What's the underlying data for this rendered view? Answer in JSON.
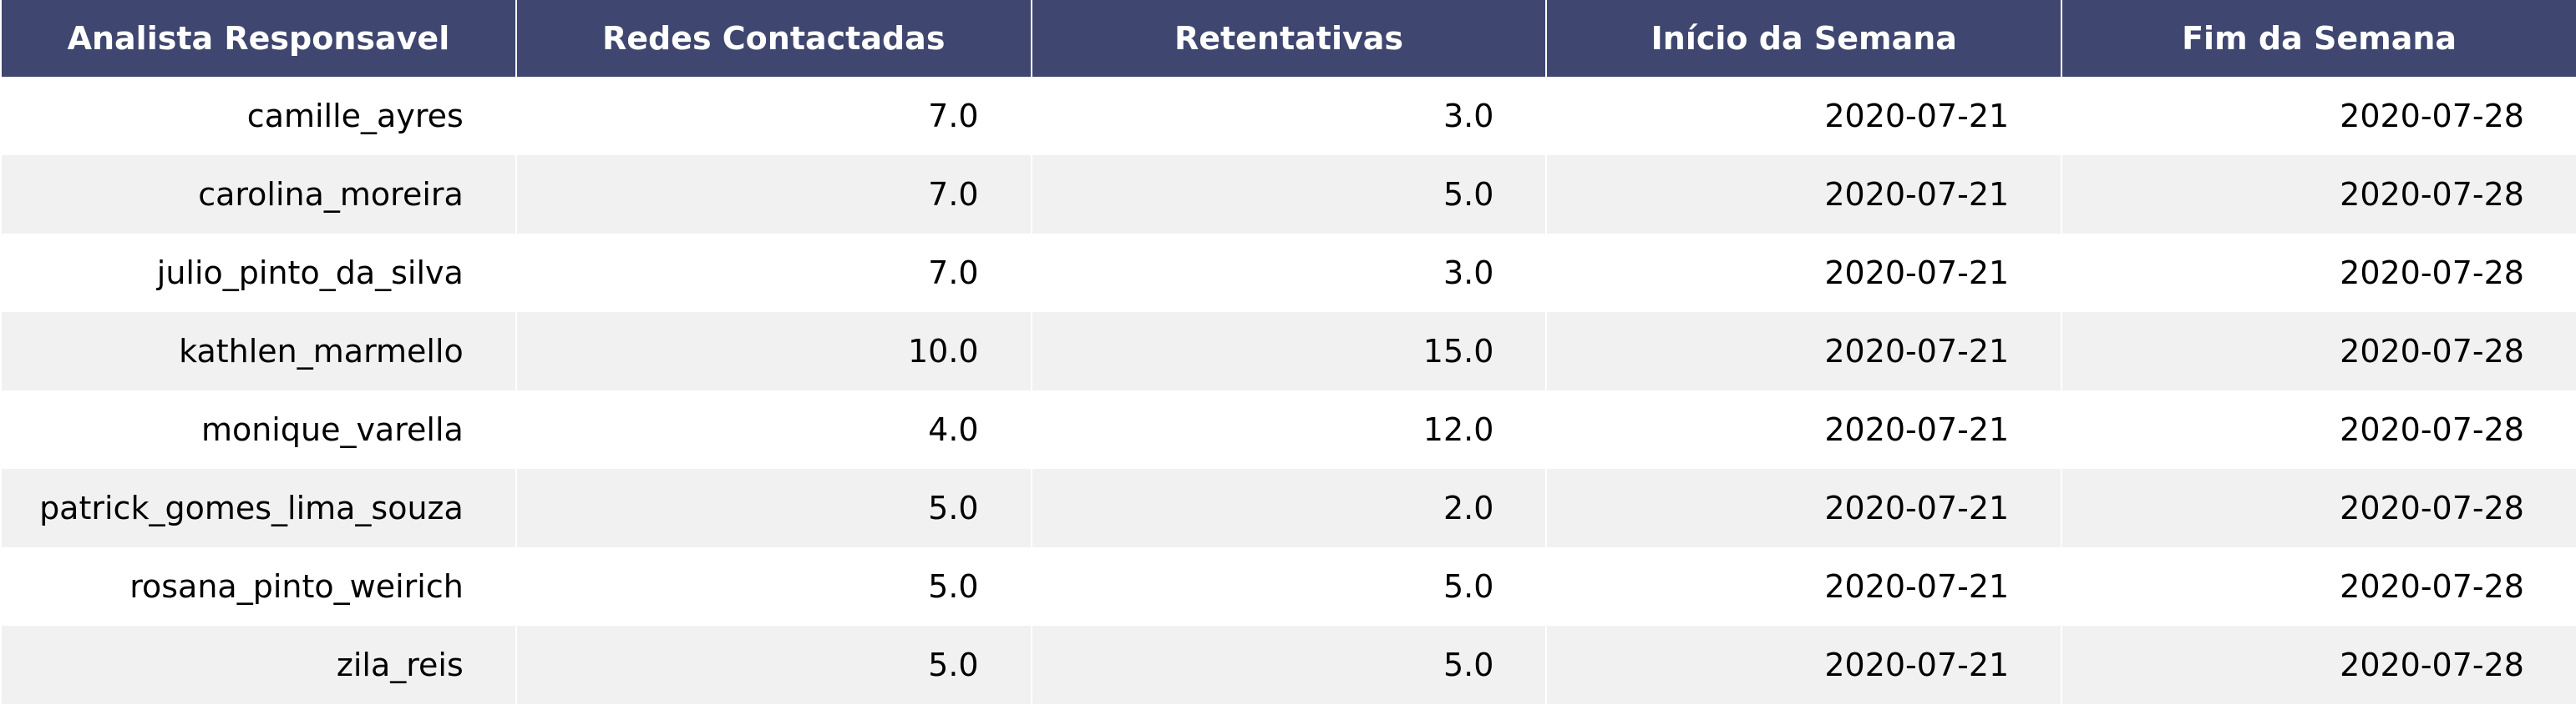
{
  "chart_data": {
    "type": "table",
    "columns": [
      "Analista Responsavel",
      "Redes Contactadas",
      "Retentativas",
      "Início da Semana",
      "Fim da Semana"
    ],
    "rows": [
      [
        "camille_ayres",
        "7.0",
        "3.0",
        "2020-07-21",
        "2020-07-28"
      ],
      [
        "carolina_moreira",
        "7.0",
        "5.0",
        "2020-07-21",
        "2020-07-28"
      ],
      [
        "julio_pinto_da_silva",
        "7.0",
        "3.0",
        "2020-07-21",
        "2020-07-28"
      ],
      [
        "kathlen_marmello",
        "10.0",
        "15.0",
        "2020-07-21",
        "2020-07-28"
      ],
      [
        "monique_varella",
        "4.0",
        "12.0",
        "2020-07-21",
        "2020-07-28"
      ],
      [
        "patrick_gomes_lima_souza",
        "5.0",
        "2.0",
        "2020-07-21",
        "2020-07-28"
      ],
      [
        "rosana_pinto_weirich",
        "5.0",
        "5.0",
        "2020-07-21",
        "2020-07-28"
      ],
      [
        "zila_reis",
        "5.0",
        "5.0",
        "2020-07-21",
        "2020-07-28"
      ]
    ],
    "colors": {
      "header_bg": "#3f466f",
      "header_text": "#ffffff",
      "row_alt_bg": "#f1f1f1",
      "row_bg": "#ffffff"
    }
  }
}
